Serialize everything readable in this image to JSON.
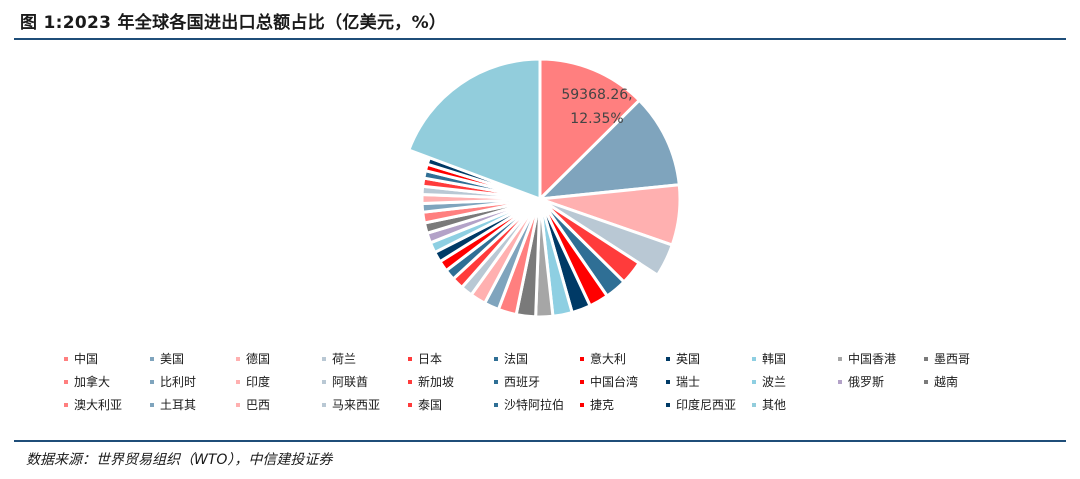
{
  "header": {
    "title": "图 1:2023 年全球各国进出口总额占比（亿美元，%）"
  },
  "footer": {
    "source": "数据来源：世界贸易组织（WTO），中信建投证券"
  },
  "chart_data": {
    "type": "pie",
    "title": "图 1:2023 年全球各国进出口总额占比（亿美元，%）",
    "unit": "亿美元，%",
    "categories": [
      "中国",
      "美国",
      "德国",
      "荷兰",
      "日本",
      "法国",
      "意大利",
      "英国",
      "韩国",
      "中国香港",
      "墨西哥",
      "加拿大",
      "比利时",
      "印度",
      "阿联酋",
      "新加坡",
      "西班牙",
      "中国台湾",
      "瑞士",
      "波兰",
      "俄罗斯",
      "越南",
      "澳大利亚",
      "土耳其",
      "巴西",
      "马来西亚",
      "泰国",
      "沙特阿拉伯",
      "捷克",
      "印度尼西亚",
      "其他"
    ],
    "values": [
      12.35,
      10.65,
      6.84,
      3.75,
      3.2,
      2.92,
      2.61,
      2.55,
      2.6,
      2.3,
      2.6,
      2.46,
      2.0,
      2.1,
      1.6,
      1.6,
      1.45,
      1.45,
      1.4,
      1.4,
      1.35,
      1.4,
      1.45,
      1.15,
      1.2,
      1.1,
      1.1,
      1.0,
      0.9,
      0.9,
      19.0
    ],
    "colors": [
      "#ff7f7f",
      "#7fa4bd",
      "#ffb0b0",
      "#b9c8d4",
      "#ff3b3b",
      "#2f6f95",
      "#ff0000",
      "#003a66",
      "#8ecfe2",
      "#a6a6a6",
      "#7a7a7a",
      "#ff7f7f",
      "#7fa4bd",
      "#ffb0b0",
      "#b9c8d4",
      "#ff3b3b",
      "#2f6f95",
      "#ff0000",
      "#003a66",
      "#8ecfe2",
      "#b3a2c8",
      "#7a7a7a",
      "#ff7f7f",
      "#7fa4bd",
      "#ffb0b0",
      "#b9c8d4",
      "#ff3b3b",
      "#2f6f95",
      "#ff0000",
      "#003a66",
      "#92cddc"
    ],
    "data_labels": [
      {
        "category": "中国",
        "line1": "59368.26,",
        "line2": "12.35%"
      }
    ],
    "legend_position": "bottom"
  }
}
